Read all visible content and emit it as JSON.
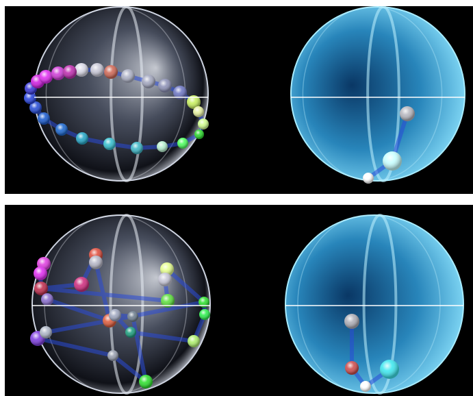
{
  "colors": {
    "background": "#000000",
    "separator": "#ffffff",
    "gray_sphere": "#9aa4b8",
    "blue_sphere": "#3fa9d8",
    "path_line": "#2a4bd7"
  },
  "icons": [
    "sphere-icon",
    "bead-icon"
  ],
  "panels": [
    {
      "name": "panel-top",
      "spheres": [
        {
          "name": "gray-sphere-top",
          "style": "gray",
          "beads": [
            {
              "c": "#d9d9e6"
            },
            {
              "c": "#c9c9d8"
            },
            {
              "c": "#d06a58"
            },
            {
              "c": "#aeb2c6"
            },
            {
              "c": "#a4a8c0"
            },
            {
              "c": "#8f93b8"
            },
            {
              "c": "#6f78c4"
            },
            {
              "c": "#c9f060"
            },
            {
              "c": "#e6f0a0"
            },
            {
              "c": "#d0ff90"
            },
            {
              "c": "#2ed82e"
            },
            {
              "c": "#50ff60"
            },
            {
              "c": "#b8f0d0"
            },
            {
              "c": "#40b8c8"
            },
            {
              "c": "#38c0d0"
            },
            {
              "c": "#28a8c8"
            },
            {
              "c": "#1f6ad0"
            },
            {
              "c": "#1e5ed0"
            },
            {
              "c": "#2a50d8"
            },
            {
              "c": "#2c48e0"
            },
            {
              "c": "#3a3ad8"
            },
            {
              "c": "#d020e0"
            },
            {
              "c": "#e030f0"
            },
            {
              "c": "#d040d8"
            },
            {
              "c": "#c030b0"
            },
            {
              "c": "#d040a0"
            },
            {
              "c": "#b82c80"
            }
          ]
        },
        {
          "name": "blue-sphere-top",
          "style": "blue",
          "beads": [
            {
              "c": "#b8b8c0"
            },
            {
              "c": "#c8ffff"
            },
            {
              "c": "#ffffff"
            }
          ]
        }
      ]
    },
    {
      "name": "panel-bottom",
      "spheres": [
        {
          "name": "gray-sphere-bottom",
          "style": "gray",
          "beads": [
            {
              "c": "#e040e0"
            },
            {
              "c": "#e030f0"
            },
            {
              "c": "#c03050"
            },
            {
              "c": "#8c70d0"
            },
            {
              "c": "#d03080"
            },
            {
              "c": "#e05040"
            },
            {
              "c": "#b8b8c8"
            },
            {
              "c": "#e6ff90"
            },
            {
              "c": "#c8c8d8"
            },
            {
              "c": "#60e040"
            },
            {
              "c": "#30e030"
            },
            {
              "c": "#30f050"
            },
            {
              "c": "#e06040"
            },
            {
              "c": "#a0a8c0"
            },
            {
              "c": "#708090"
            },
            {
              "c": "#20a080"
            },
            {
              "c": "#b0f070"
            },
            {
              "c": "#9aa0b0"
            },
            {
              "c": "#30e030"
            },
            {
              "c": "#8040e0"
            },
            {
              "c": "#b0b8c8"
            }
          ]
        },
        {
          "name": "blue-sphere-bottom",
          "style": "blue",
          "beads": [
            {
              "c": "#b0b0b8"
            },
            {
              "c": "#d05050"
            },
            {
              "c": "#40e8f0"
            },
            {
              "c": "#ffffff"
            }
          ]
        }
      ]
    }
  ]
}
